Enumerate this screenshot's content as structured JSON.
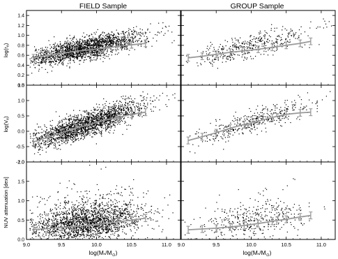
{
  "chart_data": {
    "type": "scatter",
    "layout": "3x2 panel grid",
    "column_titles": [
      "FIELD Sample",
      "GROUP Sample"
    ],
    "xlabel": "log(M*/M⊙)",
    "xlabel_parts": {
      "pre": "log(M",
      "sub1": "*",
      "mid": "/M",
      "sub2": "⊙",
      "post": ")"
    },
    "xlim": [
      9.0,
      11.2
    ],
    "xticks": [
      9.0,
      9.5,
      10.0,
      10.5,
      11.0
    ],
    "xtick_labels": [
      "9.0",
      "9.5",
      "10.0",
      "10.5",
      "11.0"
    ],
    "rows": [
      {
        "ylabel": "log(rₑ)",
        "ylabel_parts": {
          "pre": "log(r",
          "sub": "e",
          "post": ")"
        },
        "ylim": [
          0.0,
          1.5
        ],
        "yticks": [
          0.0,
          0.2,
          0.4,
          0.6,
          0.8,
          1.0,
          1.2,
          1.4
        ],
        "ytick_labels": [
          "0.0",
          "0.2",
          "0.4",
          "0.6",
          "0.8",
          "1.0",
          "1.2",
          "1.4"
        ],
        "panels": [
          {
            "sample": "FIELD",
            "scatter_density": {
              "count": 2000,
              "x_center": 9.85,
              "x_spread": 0.42,
              "slope": 0.28,
              "y_at_9_5": 0.64,
              "y_scatter": 0.11
            },
            "median_trend": {
              "x": [
                9.1,
                9.3,
                9.5,
                9.7,
                9.9,
                10.1,
                10.3,
                10.5,
                10.7
              ],
              "y": [
                0.55,
                0.6,
                0.64,
                0.68,
                0.71,
                0.74,
                0.78,
                0.81,
                0.84
              ]
            }
          },
          {
            "sample": "GROUP",
            "scatter_density": {
              "count": 420,
              "x_center": 10.0,
              "x_spread": 0.45,
              "slope": 0.3,
              "y_at_9_5": 0.63,
              "y_scatter": 0.12
            },
            "median_trend": {
              "x": [
                9.1,
                9.3,
                9.5,
                9.7,
                9.9,
                10.1,
                10.3,
                10.5,
                10.7,
                10.85
              ],
              "y": [
                0.55,
                0.58,
                0.62,
                0.66,
                0.69,
                0.72,
                0.76,
                0.8,
                0.84,
                0.88
              ]
            }
          }
        ]
      },
      {
        "ylabel": "log(Vₑ)",
        "ylabel_parts": {
          "pre": "log(V",
          "sub": "e",
          "post": ")"
        },
        "ylim": [
          -1.0,
          1.5
        ],
        "yticks": [
          -1.0,
          -0.5,
          0.0,
          0.5,
          1.0,
          1.5
        ],
        "ytick_labels": [
          "-1.0",
          "-0.5",
          "0.0",
          "0.5",
          "1.0",
          "1.5"
        ],
        "panels": [
          {
            "sample": "FIELD",
            "scatter_density": {
              "count": 2100,
              "x_center": 9.85,
              "x_spread": 0.42,
              "slope": 0.75,
              "y_at_9_5": -0.05,
              "y_scatter": 0.2
            },
            "median_trend": {
              "x": [
                9.1,
                9.3,
                9.5,
                9.7,
                9.9,
                10.1,
                10.3,
                10.5,
                10.7
              ],
              "y": [
                -0.35,
                -0.2,
                -0.05,
                0.1,
                0.22,
                0.35,
                0.45,
                0.55,
                0.62
              ]
            }
          },
          {
            "sample": "GROUP",
            "scatter_density": {
              "count": 420,
              "x_center": 10.0,
              "x_spread": 0.45,
              "slope": 0.7,
              "y_at_9_5": -0.05,
              "y_scatter": 0.18
            },
            "median_trend": {
              "x": [
                9.1,
                9.3,
                9.5,
                9.7,
                9.9,
                10.1,
                10.3,
                10.5,
                10.7,
                10.85
              ],
              "y": [
                -0.3,
                -0.18,
                -0.05,
                0.1,
                0.22,
                0.33,
                0.45,
                0.55,
                0.6,
                0.62
              ]
            }
          }
        ]
      },
      {
        "ylabel": "NUV attenuation [dex]",
        "ylim": [
          0.0,
          2.0
        ],
        "yticks": [
          0.0,
          0.5,
          1.0,
          1.5,
          2.0
        ],
        "ytick_labels": [
          "0.0",
          "0.5",
          "1.0",
          "1.5",
          "2.0"
        ],
        "panels": [
          {
            "sample": "FIELD",
            "scatter_density": {
              "count": 2100,
              "x_center": 9.85,
              "x_spread": 0.42,
              "slope": 0.2,
              "y_at_9_5": 0.33,
              "y_scatter": 0.22
            },
            "median_trend": {
              "x": [
                9.1,
                9.3,
                9.5,
                9.7,
                9.9,
                10.1,
                10.3,
                10.5,
                10.7
              ],
              "y": [
                0.26,
                0.28,
                0.31,
                0.34,
                0.37,
                0.41,
                0.45,
                0.5,
                0.55
              ]
            }
          },
          {
            "sample": "GROUP",
            "scatter_density": {
              "count": 420,
              "x_center": 10.0,
              "x_spread": 0.45,
              "slope": 0.28,
              "y_at_9_5": 0.3,
              "y_scatter": 0.2
            },
            "median_trend": {
              "x": [
                9.1,
                9.3,
                9.5,
                9.7,
                9.9,
                10.1,
                10.3,
                10.5,
                10.7,
                10.85
              ],
              "y": [
                0.25,
                0.27,
                0.29,
                0.32,
                0.36,
                0.41,
                0.47,
                0.52,
                0.58,
                0.62
              ]
            }
          }
        ]
      }
    ],
    "colors": {
      "points": "#000000",
      "trend": "#9a9a9a",
      "axes": "#000000",
      "background": "#ffffff"
    }
  }
}
